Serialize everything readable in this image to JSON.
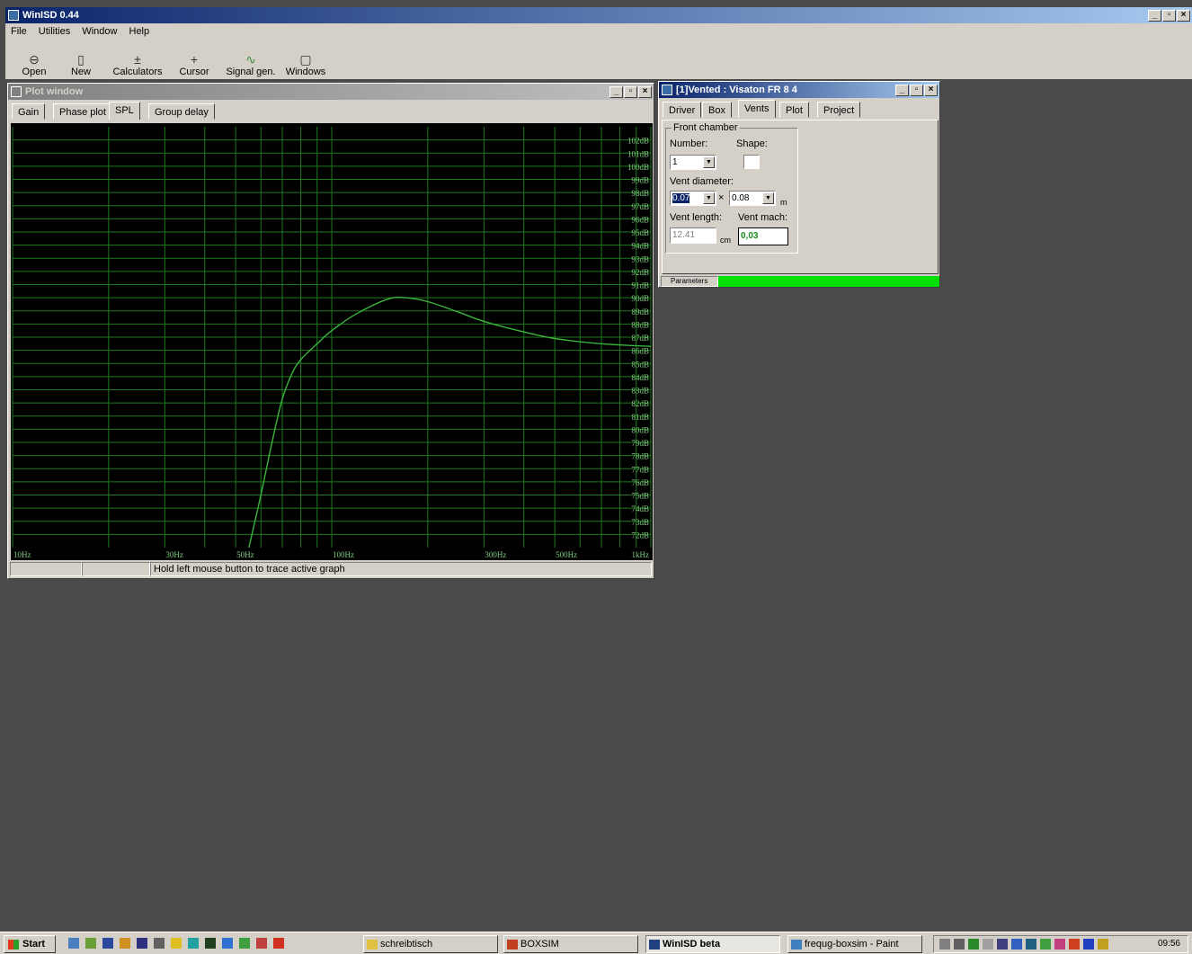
{
  "app": {
    "title": "WinISD 0.44",
    "menu": [
      "File",
      "Utilities",
      "Window",
      "Help"
    ],
    "toolbar": [
      {
        "label": "Open",
        "icon": "open-folder-icon"
      },
      {
        "label": "New",
        "icon": "new-document-icon"
      },
      {
        "label": "Calculators",
        "icon": "calculator-icon"
      },
      {
        "label": "Cursor",
        "icon": "cursor-crosshair-icon"
      },
      {
        "label": "Signal gen.",
        "icon": "signal-generator-icon"
      },
      {
        "label": "Windows",
        "icon": "windows-icon"
      }
    ]
  },
  "plot_window": {
    "title": "Plot window",
    "tabs": [
      "Gain",
      "Phase plot",
      "SPL",
      "Group delay"
    ],
    "active_tab": "SPL",
    "status_text": "Hold left mouse button to trace active graph"
  },
  "chart_data": {
    "type": "line",
    "x_scale": "log",
    "xlim": [
      10,
      1000
    ],
    "ylim": [
      71,
      103
    ],
    "x_tick_labels": [
      {
        "v": 10,
        "t": "10Hz"
      },
      {
        "v": 30,
        "t": "30Hz"
      },
      {
        "v": 50,
        "t": "50Hz"
      },
      {
        "v": 100,
        "t": "100Hz"
      },
      {
        "v": 300,
        "t": "300Hz"
      },
      {
        "v": 500,
        "t": "500Hz"
      },
      {
        "v": 1000,
        "t": "1kHz"
      }
    ],
    "x_grid": [
      10,
      20,
      30,
      40,
      50,
      60,
      70,
      80,
      90,
      100,
      200,
      300,
      400,
      500,
      600,
      700,
      800,
      900,
      1000
    ],
    "y_tick_labels": [
      "72dB",
      "73dB",
      "74dB",
      "75dB",
      "76dB",
      "77dB",
      "78dB",
      "79dB",
      "80dB",
      "81dB",
      "82dB",
      "83dB",
      "84dB",
      "85dB",
      "86dB",
      "87dB",
      "88dB",
      "89dB",
      "90dB",
      "91dB",
      "92dB",
      "93dB",
      "94dB",
      "95dB",
      "96dB",
      "97dB",
      "98dB",
      "99dB",
      "100dB",
      "101dB",
      "102dB"
    ],
    "y_tick_values": [
      72,
      73,
      74,
      75,
      76,
      77,
      78,
      79,
      80,
      81,
      82,
      83,
      84,
      85,
      86,
      87,
      88,
      89,
      90,
      91,
      92,
      93,
      94,
      95,
      96,
      97,
      98,
      99,
      100,
      101,
      102
    ],
    "grid": true,
    "series": [
      {
        "color": "#3cb43c",
        "x": [
          55,
          60,
          65,
          70,
          75,
          80,
          90,
          100,
          120,
          150,
          170,
          200,
          250,
          300,
          400,
          500,
          700,
          1000
        ],
        "y": [
          71,
          75,
          79,
          82.3,
          84.2,
          85.3,
          86.5,
          87.5,
          88.8,
          89.9,
          90,
          89.7,
          88.9,
          88.2,
          87.4,
          86.9,
          86.5,
          86.3
        ]
      }
    ]
  },
  "vented_window": {
    "title": "[1]Vented : Visaton FR 8 4",
    "tabs": [
      "Driver",
      "Box",
      "Vents",
      "Plot",
      "Project"
    ],
    "active_tab": "Vents",
    "group_label": "Front chamber",
    "number_label": "Number:",
    "number_value": "1",
    "shape_label": "Shape:",
    "vent_diameter_label": "Vent diameter:",
    "vent_d1": "0.07",
    "times_sign": "×",
    "vent_d2": "0.08",
    "unit_m": "m",
    "vent_length_label": "Vent length:",
    "vent_length_value": "12.41",
    "unit_cm": "cm",
    "vent_mach_label": "Vent mach:",
    "vent_mach_value": "0,03",
    "status_label": "Parameters",
    "status_color": "#00e000"
  },
  "taskbar": {
    "start_label": "Start",
    "tasks": [
      {
        "label": "schreibtisch",
        "icon": "folder-icon"
      },
      {
        "label": "BOXSIM",
        "icon": "boxsim-icon"
      },
      {
        "label": "WinISD beta",
        "icon": "winisd-icon"
      },
      {
        "label": "frequg-boxsim - Paint",
        "icon": "paint-icon"
      }
    ],
    "clock": "09:56"
  }
}
